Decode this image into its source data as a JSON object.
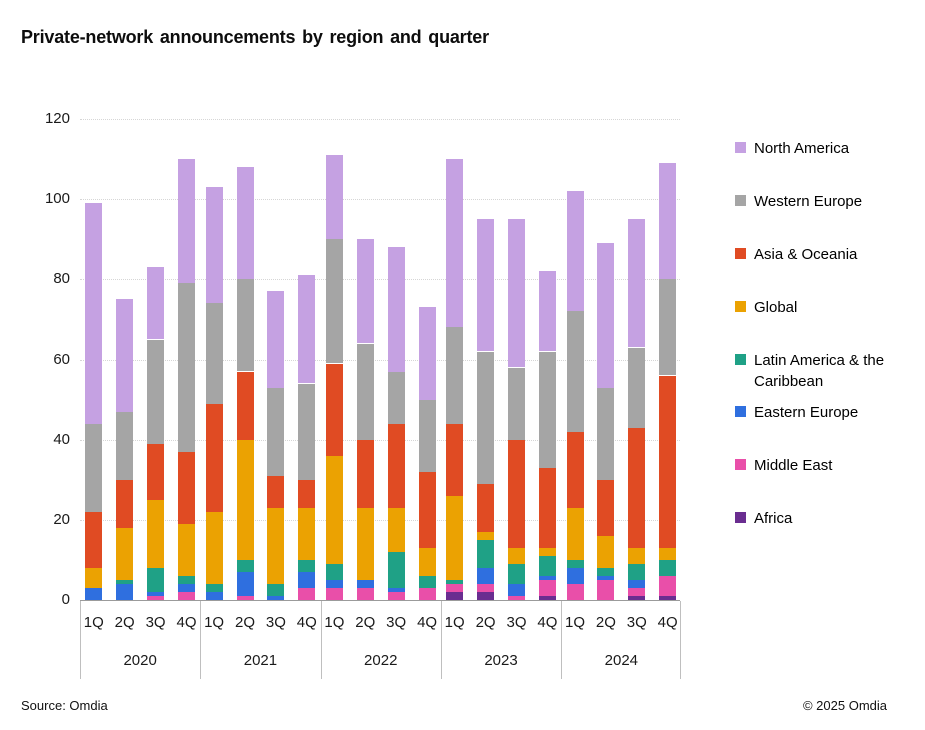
{
  "title": "Private-network announcements by region and quarter",
  "footer": {
    "source": "Source: Omdia",
    "copyright": "© 2025 Omdia"
  },
  "chart_data": {
    "type": "bar",
    "stacked": true,
    "title": "Private-network announcements by region and quarter",
    "xlabel": "",
    "ylabel": "",
    "ylim": [
      0,
      120
    ],
    "yticks": [
      0,
      20,
      40,
      60,
      80,
      100,
      120
    ],
    "gridlines": true,
    "legend_position": "right",
    "years": [
      "2020",
      "2021",
      "2022",
      "2023",
      "2024"
    ],
    "quarters": [
      "1Q",
      "2Q",
      "3Q",
      "4Q"
    ],
    "stack_order": "bottom-to-top: Africa, Middle East, Eastern Europe, Latin America & the Caribbean, Global, Asia & Oceania, Western Europe, North America",
    "quarter_totals": [
      99,
      75,
      83,
      110,
      103,
      108,
      77,
      81,
      111,
      90,
      88,
      73,
      110,
      95,
      95,
      82,
      102,
      89,
      95,
      109
    ],
    "series": [
      {
        "name": "North America",
        "color": "#c5a1e2",
        "values": [
          55,
          28,
          18,
          31,
          29,
          28,
          24,
          27,
          21,
          26,
          31,
          23,
          42,
          33,
          37,
          20,
          30,
          36,
          32,
          29
        ]
      },
      {
        "name": "Western Europe",
        "color": "#a5a5a5",
        "values": [
          22,
          17,
          26,
          42,
          25,
          23,
          22,
          24,
          31,
          24,
          13,
          18,
          24,
          33,
          18,
          29,
          30,
          23,
          20,
          24
        ]
      },
      {
        "name": "Asia & Oceania",
        "color": "#e04b23",
        "values": [
          14,
          12,
          14,
          18,
          27,
          17,
          8,
          7,
          23,
          17,
          21,
          19,
          18,
          12,
          27,
          20,
          19,
          14,
          30,
          43
        ]
      },
      {
        "name": "Global",
        "color": "#eba202",
        "values": [
          5,
          13,
          17,
          13,
          18,
          30,
          19,
          13,
          27,
          18,
          11,
          7,
          21,
          2,
          4,
          2,
          13,
          8,
          4,
          3
        ]
      },
      {
        "name": "Latin America & the Caribbean",
        "color": "#1fa186",
        "values": [
          0,
          1,
          6,
          2,
          2,
          3,
          3,
          3,
          4,
          0,
          9,
          3,
          1,
          7,
          5,
          5,
          2,
          2,
          4,
          4
        ]
      },
      {
        "name": "Eastern Europe",
        "color": "#2f6fdf",
        "values": [
          3,
          4,
          1,
          2,
          2,
          6,
          1,
          4,
          2,
          2,
          1,
          0,
          0,
          4,
          3,
          1,
          4,
          1,
          2,
          0
        ]
      },
      {
        "name": "Middle East",
        "color": "#e94fa9",
        "values": [
          0,
          0,
          1,
          2,
          0,
          1,
          0,
          3,
          3,
          3,
          2,
          3,
          2,
          2,
          1,
          4,
          4,
          5,
          2,
          5
        ]
      },
      {
        "name": "Africa",
        "color": "#6a2d90",
        "values": [
          0,
          0,
          0,
          0,
          0,
          0,
          0,
          0,
          0,
          0,
          0,
          0,
          2,
          2,
          0,
          1,
          0,
          0,
          1,
          1
        ]
      }
    ]
  }
}
